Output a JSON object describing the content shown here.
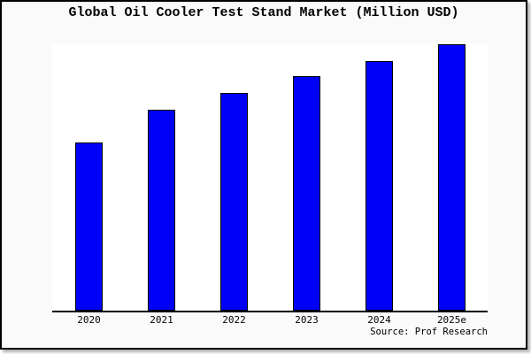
{
  "chart_data": {
    "type": "bar",
    "title": "Global Oil Cooler Test Stand Market (Million USD)",
    "categories": [
      "2020",
      "2021",
      "2022",
      "2023",
      "2024",
      "2025e"
    ],
    "values": [
      190,
      227,
      246,
      265,
      282,
      301
    ],
    "xlabel": "",
    "ylabel": "",
    "ylim": [
      0,
      302
    ],
    "grid": false,
    "legend": null,
    "y_axis_ticks_visible": false,
    "bar_color": "#0000f8",
    "bar_border_color": "#000000",
    "plot_background": "#ffffff",
    "canvas_background": "#fafafa",
    "axis_color": "#000000"
  },
  "source": {
    "label": "Source: Prof Research"
  }
}
